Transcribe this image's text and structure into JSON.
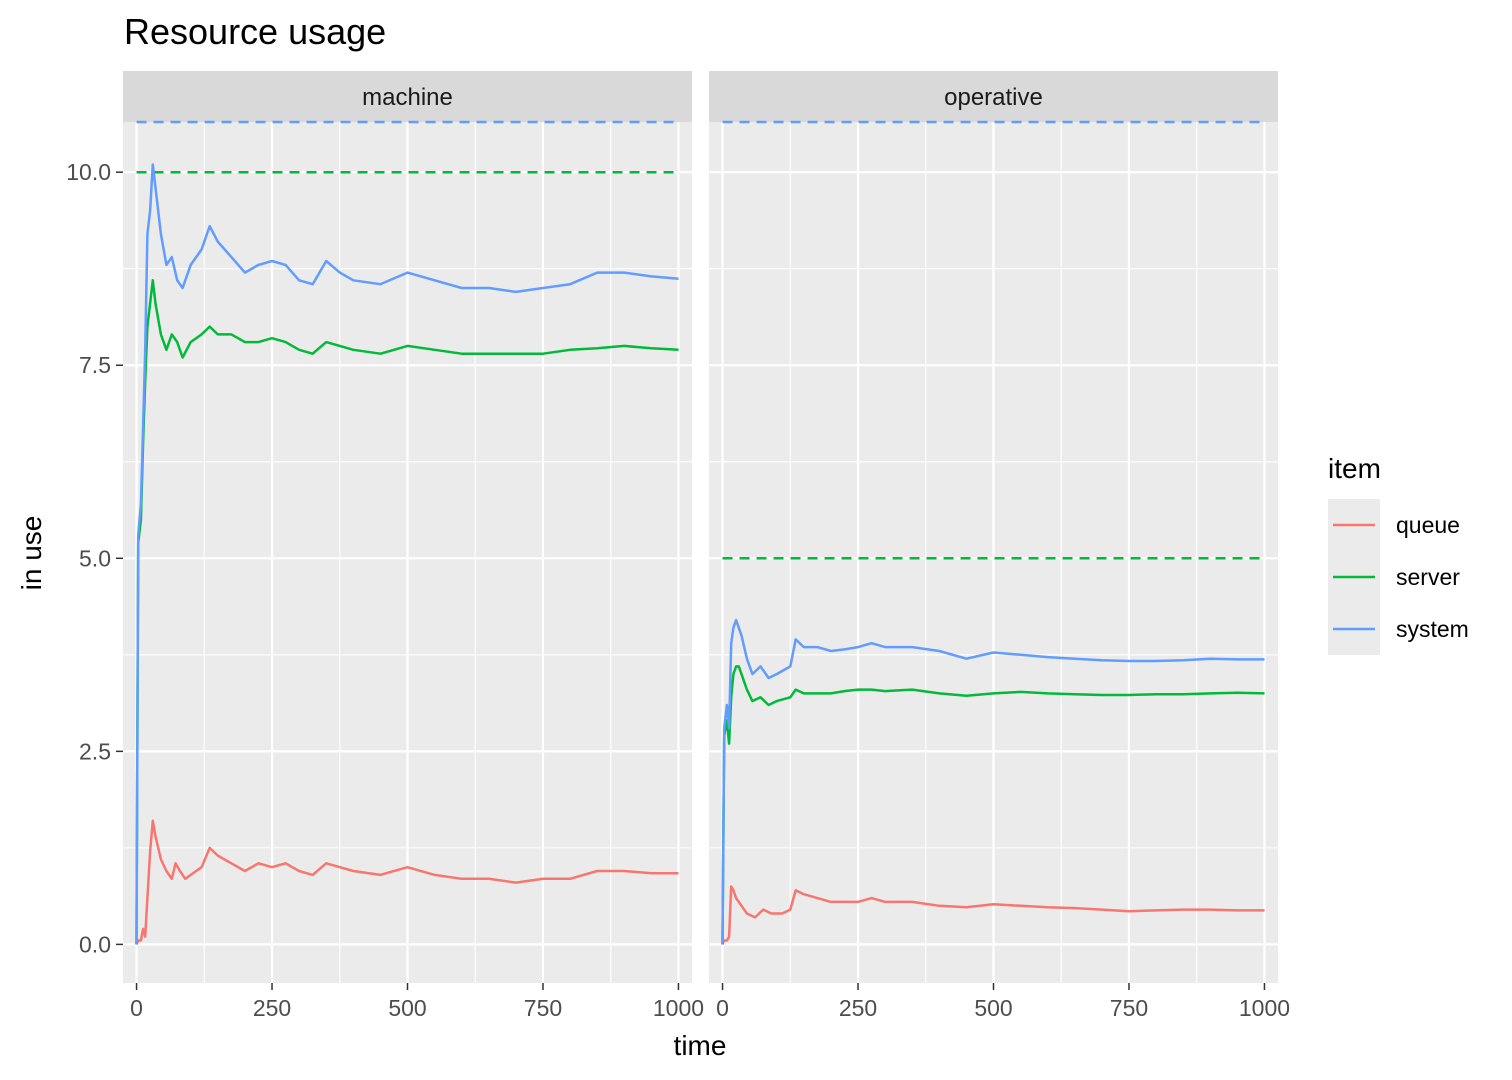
{
  "chart_data": {
    "type": "line",
    "title": "Resource usage",
    "xlabel": "time",
    "ylabel": "in use",
    "xlim": [
      -25,
      1025
    ],
    "ylim": [
      -0.5,
      10.65
    ],
    "x_ticks": [
      "0",
      "250",
      "500",
      "750",
      "1000"
    ],
    "y_ticks": [
      "0.0",
      "2.5",
      "5.0",
      "7.5",
      "10.0"
    ],
    "grid": true,
    "legend": {
      "title": "item",
      "placement": "right",
      "entries": [
        "queue",
        "server",
        "system"
      ]
    },
    "colors": {
      "queue": "#F8766D",
      "server": "#00BA38",
      "system": "#619CFF"
    },
    "panels": [
      {
        "label": "machine",
        "limits": [
          {
            "series": "server",
            "y": 10.0,
            "style": "dashed"
          },
          {
            "series": "system",
            "y": 10.65,
            "style": "dashed"
          }
        ],
        "series": [
          {
            "name": "queue",
            "points": [
              [
                0,
                0
              ],
              [
                3,
                0.05
              ],
              [
                8,
                0.05
              ],
              [
                12,
                0.2
              ],
              [
                16,
                0.1
              ],
              [
                20,
                0.6
              ],
              [
                25,
                1.2
              ],
              [
                30,
                1.6
              ],
              [
                35,
                1.4
              ],
              [
                45,
                1.1
              ],
              [
                55,
                0.95
              ],
              [
                65,
                0.85
              ],
              [
                72,
                1.05
              ],
              [
                80,
                0.95
              ],
              [
                90,
                0.85
              ],
              [
                100,
                0.9
              ],
              [
                110,
                0.95
              ],
              [
                120,
                1.0
              ],
              [
                135,
                1.25
              ],
              [
                150,
                1.15
              ],
              [
                175,
                1.05
              ],
              [
                200,
                0.95
              ],
              [
                225,
                1.05
              ],
              [
                250,
                1.0
              ],
              [
                275,
                1.05
              ],
              [
                300,
                0.95
              ],
              [
                325,
                0.9
              ],
              [
                350,
                1.05
              ],
              [
                375,
                1.0
              ],
              [
                400,
                0.95
              ],
              [
                450,
                0.9
              ],
              [
                500,
                1.0
              ],
              [
                550,
                0.9
              ],
              [
                600,
                0.85
              ],
              [
                650,
                0.85
              ],
              [
                700,
                0.8
              ],
              [
                750,
                0.85
              ],
              [
                800,
                0.85
              ],
              [
                850,
                0.95
              ],
              [
                900,
                0.95
              ],
              [
                950,
                0.92
              ],
              [
                1000,
                0.92
              ]
            ]
          },
          {
            "name": "server",
            "points": [
              [
                0,
                0
              ],
              [
                3,
                5.2
              ],
              [
                8,
                5.5
              ],
              [
                12,
                6.5
              ],
              [
                16,
                7.3
              ],
              [
                20,
                8.0
              ],
              [
                25,
                8.3
              ],
              [
                30,
                8.6
              ],
              [
                35,
                8.3
              ],
              [
                45,
                7.9
              ],
              [
                55,
                7.7
              ],
              [
                65,
                7.9
              ],
              [
                75,
                7.8
              ],
              [
                85,
                7.6
              ],
              [
                100,
                7.8
              ],
              [
                120,
                7.9
              ],
              [
                135,
                8.0
              ],
              [
                150,
                7.9
              ],
              [
                175,
                7.9
              ],
              [
                200,
                7.8
              ],
              [
                225,
                7.8
              ],
              [
                250,
                7.85
              ],
              [
                275,
                7.8
              ],
              [
                300,
                7.7
              ],
              [
                325,
                7.65
              ],
              [
                350,
                7.8
              ],
              [
                375,
                7.75
              ],
              [
                400,
                7.7
              ],
              [
                450,
                7.65
              ],
              [
                500,
                7.75
              ],
              [
                550,
                7.7
              ],
              [
                600,
                7.65
              ],
              [
                650,
                7.65
              ],
              [
                700,
                7.65
              ],
              [
                750,
                7.65
              ],
              [
                800,
                7.7
              ],
              [
                850,
                7.72
              ],
              [
                900,
                7.75
              ],
              [
                950,
                7.72
              ],
              [
                1000,
                7.7
              ]
            ]
          },
          {
            "name": "system",
            "points": [
              [
                0,
                0
              ],
              [
                3,
                5.3
              ],
              [
                8,
                5.7
              ],
              [
                12,
                6.7
              ],
              [
                16,
                7.7
              ],
              [
                20,
                9.2
              ],
              [
                25,
                9.5
              ],
              [
                30,
                10.1
              ],
              [
                35,
                9.8
              ],
              [
                45,
                9.2
              ],
              [
                55,
                8.8
              ],
              [
                65,
                8.9
              ],
              [
                75,
                8.6
              ],
              [
                85,
                8.5
              ],
              [
                100,
                8.8
              ],
              [
                120,
                9.0
              ],
              [
                135,
                9.3
              ],
              [
                150,
                9.1
              ],
              [
                175,
                8.9
              ],
              [
                200,
                8.7
              ],
              [
                225,
                8.8
              ],
              [
                250,
                8.85
              ],
              [
                275,
                8.8
              ],
              [
                300,
                8.6
              ],
              [
                325,
                8.55
              ],
              [
                350,
                8.85
              ],
              [
                375,
                8.7
              ],
              [
                400,
                8.6
              ],
              [
                450,
                8.55
              ],
              [
                500,
                8.7
              ],
              [
                550,
                8.6
              ],
              [
                600,
                8.5
              ],
              [
                650,
                8.5
              ],
              [
                700,
                8.45
              ],
              [
                750,
                8.5
              ],
              [
                800,
                8.55
              ],
              [
                850,
                8.7
              ],
              [
                900,
                8.7
              ],
              [
                950,
                8.65
              ],
              [
                1000,
                8.62
              ]
            ]
          }
        ]
      },
      {
        "label": "operative",
        "limits": [
          {
            "series": "server",
            "y": 5.0,
            "style": "dashed"
          },
          {
            "series": "system",
            "y": 10.65,
            "style": "dashed"
          }
        ],
        "series": [
          {
            "name": "queue",
            "points": [
              [
                0,
                0
              ],
              [
                3,
                0.05
              ],
              [
                8,
                0.05
              ],
              [
                12,
                0.1
              ],
              [
                16,
                0.75
              ],
              [
                20,
                0.7
              ],
              [
                25,
                0.6
              ],
              [
                35,
                0.5
              ],
              [
                45,
                0.4
              ],
              [
                60,
                0.35
              ],
              [
                75,
                0.45
              ],
              [
                90,
                0.4
              ],
              [
                110,
                0.4
              ],
              [
                125,
                0.45
              ],
              [
                135,
                0.7
              ],
              [
                150,
                0.65
              ],
              [
                175,
                0.6
              ],
              [
                200,
                0.55
              ],
              [
                225,
                0.55
              ],
              [
                250,
                0.55
              ],
              [
                275,
                0.6
              ],
              [
                300,
                0.55
              ],
              [
                350,
                0.55
              ],
              [
                400,
                0.5
              ],
              [
                450,
                0.48
              ],
              [
                500,
                0.52
              ],
              [
                550,
                0.5
              ],
              [
                600,
                0.48
              ],
              [
                650,
                0.47
              ],
              [
                700,
                0.45
              ],
              [
                750,
                0.43
              ],
              [
                800,
                0.44
              ],
              [
                850,
                0.45
              ],
              [
                900,
                0.45
              ],
              [
                950,
                0.44
              ],
              [
                1000,
                0.44
              ]
            ]
          },
          {
            "name": "server",
            "points": [
              [
                0,
                0
              ],
              [
                3,
                2.7
              ],
              [
                8,
                2.9
              ],
              [
                12,
                2.6
              ],
              [
                16,
                3.2
              ],
              [
                20,
                3.5
              ],
              [
                25,
                3.6
              ],
              [
                30,
                3.6
              ],
              [
                35,
                3.5
              ],
              [
                45,
                3.3
              ],
              [
                55,
                3.15
              ],
              [
                70,
                3.2
              ],
              [
                85,
                3.1
              ],
              [
                100,
                3.15
              ],
              [
                125,
                3.2
              ],
              [
                135,
                3.3
              ],
              [
                150,
                3.25
              ],
              [
                175,
                3.25
              ],
              [
                200,
                3.25
              ],
              [
                225,
                3.28
              ],
              [
                250,
                3.3
              ],
              [
                275,
                3.3
              ],
              [
                300,
                3.28
              ],
              [
                350,
                3.3
              ],
              [
                400,
                3.25
              ],
              [
                450,
                3.22
              ],
              [
                500,
                3.25
              ],
              [
                550,
                3.27
              ],
              [
                600,
                3.25
              ],
              [
                650,
                3.24
              ],
              [
                700,
                3.23
              ],
              [
                750,
                3.23
              ],
              [
                800,
                3.24
              ],
              [
                850,
                3.24
              ],
              [
                900,
                3.25
              ],
              [
                950,
                3.26
              ],
              [
                1000,
                3.25
              ]
            ]
          },
          {
            "name": "system",
            "points": [
              [
                0,
                0
              ],
              [
                3,
                2.8
              ],
              [
                8,
                3.1
              ],
              [
                12,
                2.8
              ],
              [
                16,
                3.9
              ],
              [
                20,
                4.1
              ],
              [
                25,
                4.2
              ],
              [
                30,
                4.1
              ],
              [
                35,
                4.0
              ],
              [
                45,
                3.7
              ],
              [
                55,
                3.5
              ],
              [
                70,
                3.6
              ],
              [
                85,
                3.45
              ],
              [
                100,
                3.5
              ],
              [
                125,
                3.6
              ],
              [
                135,
                3.95
              ],
              [
                150,
                3.85
              ],
              [
                175,
                3.85
              ],
              [
                200,
                3.8
              ],
              [
                225,
                3.82
              ],
              [
                250,
                3.85
              ],
              [
                275,
                3.9
              ],
              [
                300,
                3.85
              ],
              [
                350,
                3.85
              ],
              [
                400,
                3.8
              ],
              [
                450,
                3.7
              ],
              [
                500,
                3.78
              ],
              [
                550,
                3.75
              ],
              [
                600,
                3.72
              ],
              [
                650,
                3.7
              ],
              [
                700,
                3.68
              ],
              [
                750,
                3.67
              ],
              [
                800,
                3.67
              ],
              [
                850,
                3.68
              ],
              [
                900,
                3.7
              ],
              [
                950,
                3.69
              ],
              [
                1000,
                3.69
              ]
            ]
          }
        ]
      }
    ]
  }
}
